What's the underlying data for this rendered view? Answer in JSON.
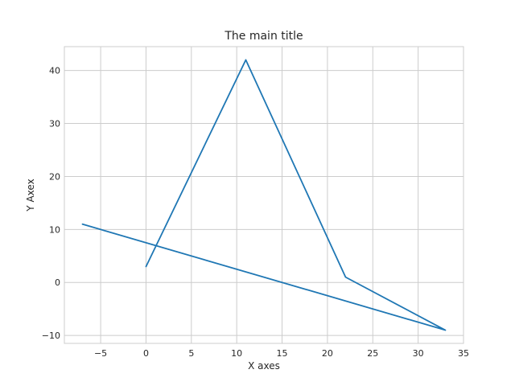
{
  "chart_data": {
    "type": "line",
    "title": "The main title",
    "xlabel": "X axes",
    "ylabel": "Y Axex",
    "xlim": [
      -9,
      35
    ],
    "ylim": [
      -11.5,
      44.5
    ],
    "xticks": [
      -5,
      0,
      5,
      10,
      15,
      20,
      25,
      30,
      35
    ],
    "yticks": [
      -10,
      0,
      10,
      20,
      30,
      40
    ],
    "xtick_labels": [
      "−5",
      "0",
      "5",
      "10",
      "15",
      "20",
      "25",
      "30",
      "35"
    ],
    "ytick_labels": [
      "−10",
      "0",
      "10",
      "20",
      "30",
      "40"
    ],
    "grid": true,
    "series": [
      {
        "x": [
          0,
          11,
          22,
          33,
          -7
        ],
        "y": [
          3,
          42,
          1,
          -9,
          11
        ],
        "color": "#1f77b4"
      }
    ],
    "colors": {
      "line": "#1f77b4",
      "grid": "#cccccc",
      "frame": "#cccccc",
      "text": "#262626"
    }
  }
}
